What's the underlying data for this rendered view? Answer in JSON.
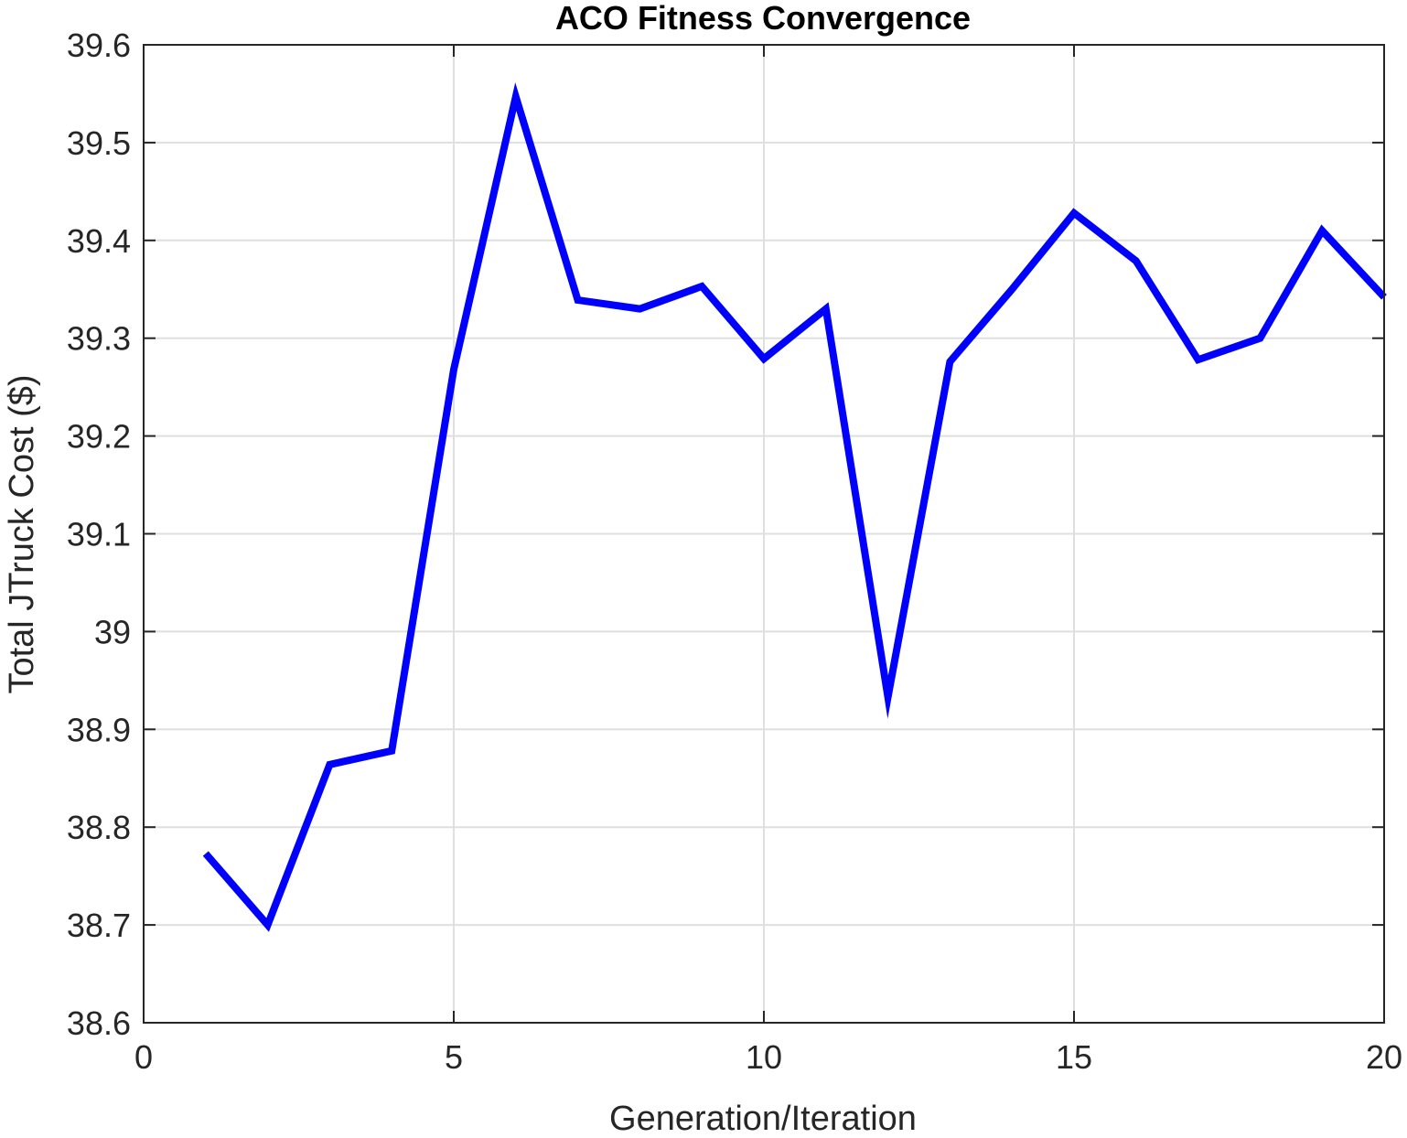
{
  "chart_data": {
    "type": "line",
    "title": "ACO Fitness Convergence",
    "xlabel": "Generation/Iteration",
    "ylabel": "Total JTruck Cost ($)",
    "xlim": [
      0,
      20
    ],
    "ylim": [
      38.6,
      39.6
    ],
    "xticks": [
      0,
      5,
      10,
      15,
      20
    ],
    "xtick_labels": [
      "0",
      "5",
      "10",
      "15",
      "20"
    ],
    "yticks": [
      38.6,
      38.7,
      38.8,
      38.9,
      39.0,
      39.1,
      39.2,
      39.3,
      39.4,
      39.5,
      39.6
    ],
    "ytick_labels": [
      "38.6",
      "38.7",
      "38.8",
      "38.9",
      "39",
      "39.1",
      "39.2",
      "39.3",
      "39.4",
      "39.5",
      "39.6"
    ],
    "grid": true,
    "legend": "none",
    "series": [
      {
        "color": "#0000ff",
        "x": [
          1,
          2,
          3,
          4,
          5,
          6,
          7,
          8,
          9,
          10,
          11,
          12,
          13,
          14,
          15,
          16,
          17,
          18,
          19,
          20
        ],
        "values": [
          38.773,
          38.7,
          38.864,
          38.878,
          39.268,
          39.547,
          39.339,
          39.33,
          39.353,
          39.279,
          39.33,
          38.933,
          39.276,
          39.35,
          39.428,
          39.379,
          39.278,
          39.3,
          39.41,
          39.342
        ]
      }
    ]
  }
}
